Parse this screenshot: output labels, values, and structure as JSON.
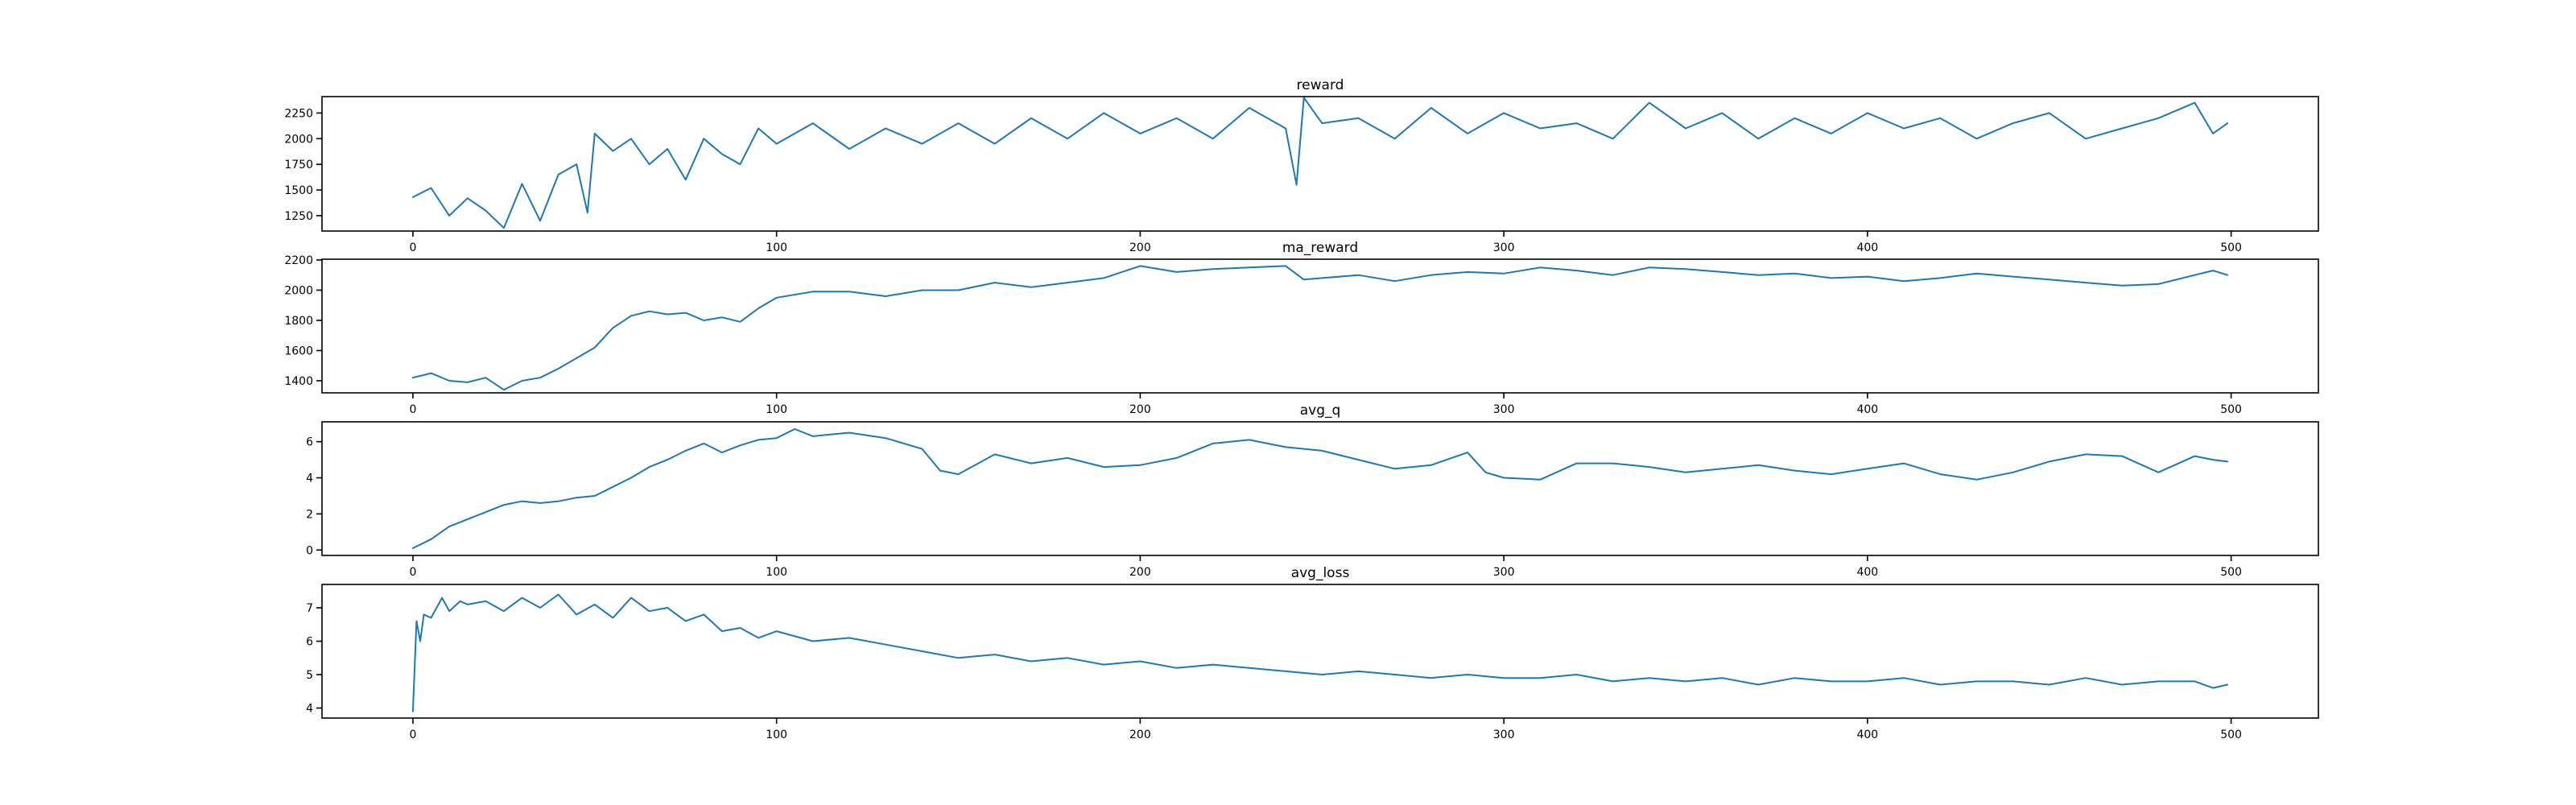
{
  "figure": {
    "line_color": "#1f77b4",
    "background": "#ffffff"
  },
  "chart_data": [
    {
      "type": "line",
      "title": "reward",
      "xlabel": "",
      "ylabel": "",
      "xlim": [
        -25,
        524
      ],
      "ylim": [
        1100,
        2410
      ],
      "xticks": [
        0,
        100,
        200,
        300,
        400,
        500
      ],
      "yticks": [
        1250,
        1500,
        1750,
        2000,
        2250
      ],
      "grid": false,
      "series": [
        {
          "x": [
            0,
            5,
            10,
            15,
            20,
            25,
            30,
            35,
            40,
            45,
            48,
            50,
            55,
            60,
            65,
            70,
            75,
            80,
            85,
            90,
            95,
            100,
            110,
            120,
            130,
            140,
            150,
            160,
            170,
            180,
            190,
            200,
            210,
            220,
            230,
            240,
            243,
            245,
            250,
            260,
            270,
            280,
            290,
            300,
            310,
            320,
            330,
            340,
            350,
            360,
            370,
            380,
            390,
            400,
            410,
            420,
            430,
            440,
            450,
            460,
            470,
            480,
            490,
            495,
            499
          ],
          "y": [
            1430,
            1520,
            1250,
            1420,
            1300,
            1130,
            1560,
            1200,
            1650,
            1750,
            1280,
            2050,
            1880,
            2000,
            1750,
            1900,
            1600,
            2000,
            1850,
            1750,
            2100,
            1950,
            2150,
            1900,
            2100,
            1950,
            2150,
            1950,
            2200,
            2000,
            2250,
            2050,
            2200,
            2000,
            2300,
            2100,
            1550,
            2400,
            2150,
            2200,
            2000,
            2300,
            2050,
            2250,
            2100,
            2150,
            2000,
            2350,
            2100,
            2250,
            2000,
            2200,
            2050,
            2250,
            2100,
            2200,
            2000,
            2150,
            2250,
            2000,
            2100,
            2200,
            2350,
            2050,
            2150
          ]
        }
      ]
    },
    {
      "type": "line",
      "title": "ma_reward",
      "xlabel": "",
      "ylabel": "",
      "xlim": [
        -25,
        524
      ],
      "ylim": [
        1320,
        2205
      ],
      "xticks": [
        0,
        100,
        200,
        300,
        400,
        500
      ],
      "yticks": [
        1400,
        1600,
        1800,
        2000,
        2200
      ],
      "grid": false,
      "series": [
        {
          "x": [
            0,
            5,
            10,
            15,
            20,
            25,
            30,
            35,
            40,
            45,
            50,
            55,
            60,
            65,
            70,
            75,
            80,
            85,
            90,
            95,
            100,
            110,
            120,
            130,
            140,
            150,
            160,
            170,
            180,
            190,
            200,
            210,
            220,
            230,
            240,
            245,
            250,
            260,
            270,
            280,
            290,
            300,
            310,
            320,
            330,
            340,
            350,
            360,
            370,
            380,
            390,
            400,
            410,
            420,
            430,
            440,
            450,
            460,
            470,
            480,
            490,
            495,
            499
          ],
          "y": [
            1420,
            1450,
            1400,
            1390,
            1420,
            1340,
            1400,
            1420,
            1480,
            1550,
            1620,
            1750,
            1830,
            1860,
            1840,
            1850,
            1800,
            1820,
            1790,
            1880,
            1950,
            1990,
            1990,
            1960,
            2000,
            2000,
            2050,
            2020,
            2050,
            2080,
            2160,
            2120,
            2140,
            2150,
            2160,
            2070,
            2080,
            2100,
            2060,
            2100,
            2120,
            2110,
            2150,
            2130,
            2100,
            2150,
            2140,
            2120,
            2100,
            2110,
            2080,
            2090,
            2060,
            2080,
            2110,
            2090,
            2070,
            2050,
            2030,
            2040,
            2100,
            2130,
            2100
          ]
        }
      ]
    },
    {
      "type": "line",
      "title": "avg_q",
      "xlabel": "",
      "ylabel": "",
      "xlim": [
        -25,
        524
      ],
      "ylim": [
        -0.3,
        7.1
      ],
      "xticks": [
        0,
        100,
        200,
        300,
        400,
        500
      ],
      "yticks": [
        0,
        2,
        4,
        6
      ],
      "grid": false,
      "series": [
        {
          "x": [
            0,
            5,
            10,
            15,
            20,
            25,
            30,
            35,
            40,
            45,
            50,
            55,
            60,
            65,
            70,
            75,
            80,
            85,
            90,
            95,
            100,
            105,
            110,
            120,
            130,
            140,
            145,
            150,
            160,
            170,
            180,
            190,
            200,
            210,
            220,
            230,
            240,
            250,
            260,
            270,
            280,
            290,
            295,
            300,
            310,
            320,
            330,
            340,
            350,
            360,
            370,
            380,
            390,
            400,
            410,
            420,
            430,
            440,
            450,
            460,
            470,
            480,
            490,
            495,
            499
          ],
          "y": [
            0.1,
            0.6,
            1.3,
            1.7,
            2.1,
            2.5,
            2.7,
            2.6,
            2.7,
            2.9,
            3.0,
            3.5,
            4.0,
            4.6,
            5.0,
            5.5,
            5.9,
            5.4,
            5.8,
            6.1,
            6.2,
            6.7,
            6.3,
            6.5,
            6.2,
            5.6,
            4.4,
            4.2,
            5.3,
            4.8,
            5.1,
            4.6,
            4.7,
            5.1,
            5.9,
            6.1,
            5.7,
            5.5,
            5.0,
            4.5,
            4.7,
            5.4,
            4.3,
            4.0,
            3.9,
            4.8,
            4.8,
            4.6,
            4.3,
            4.5,
            4.7,
            4.4,
            4.2,
            4.5,
            4.8,
            4.2,
            3.9,
            4.3,
            4.9,
            5.3,
            5.2,
            4.3,
            5.2,
            5.0,
            4.9
          ]
        }
      ]
    },
    {
      "type": "line",
      "title": "avg_loss",
      "xlabel": "",
      "ylabel": "",
      "xlim": [
        -25,
        524
      ],
      "ylim": [
        3.7,
        7.7
      ],
      "xticks": [
        0,
        100,
        200,
        300,
        400,
        500
      ],
      "yticks": [
        4,
        5,
        6,
        7
      ],
      "grid": false,
      "series": [
        {
          "x": [
            0,
            1,
            2,
            3,
            5,
            8,
            10,
            13,
            15,
            20,
            25,
            30,
            35,
            40,
            45,
            50,
            55,
            60,
            65,
            70,
            75,
            80,
            85,
            90,
            95,
            100,
            110,
            120,
            130,
            140,
            150,
            160,
            170,
            180,
            190,
            200,
            210,
            220,
            230,
            240,
            250,
            260,
            270,
            280,
            290,
            300,
            310,
            320,
            330,
            340,
            350,
            360,
            370,
            380,
            390,
            400,
            410,
            420,
            430,
            440,
            450,
            460,
            470,
            480,
            490,
            495,
            499
          ],
          "y": [
            3.9,
            6.6,
            6.0,
            6.8,
            6.7,
            7.3,
            6.9,
            7.2,
            7.1,
            7.2,
            6.9,
            7.3,
            7.0,
            7.4,
            6.8,
            7.1,
            6.7,
            7.3,
            6.9,
            7.0,
            6.6,
            6.8,
            6.3,
            6.4,
            6.1,
            6.3,
            6.0,
            6.1,
            5.9,
            5.7,
            5.5,
            5.6,
            5.4,
            5.5,
            5.3,
            5.4,
            5.2,
            5.3,
            5.2,
            5.1,
            5.0,
            5.1,
            5.0,
            4.9,
            5.0,
            4.9,
            4.9,
            5.0,
            4.8,
            4.9,
            4.8,
            4.9,
            4.7,
            4.9,
            4.8,
            4.8,
            4.9,
            4.7,
            4.8,
            4.8,
            4.7,
            4.9,
            4.7,
            4.8,
            4.8,
            4.6,
            4.7
          ]
        }
      ]
    }
  ]
}
